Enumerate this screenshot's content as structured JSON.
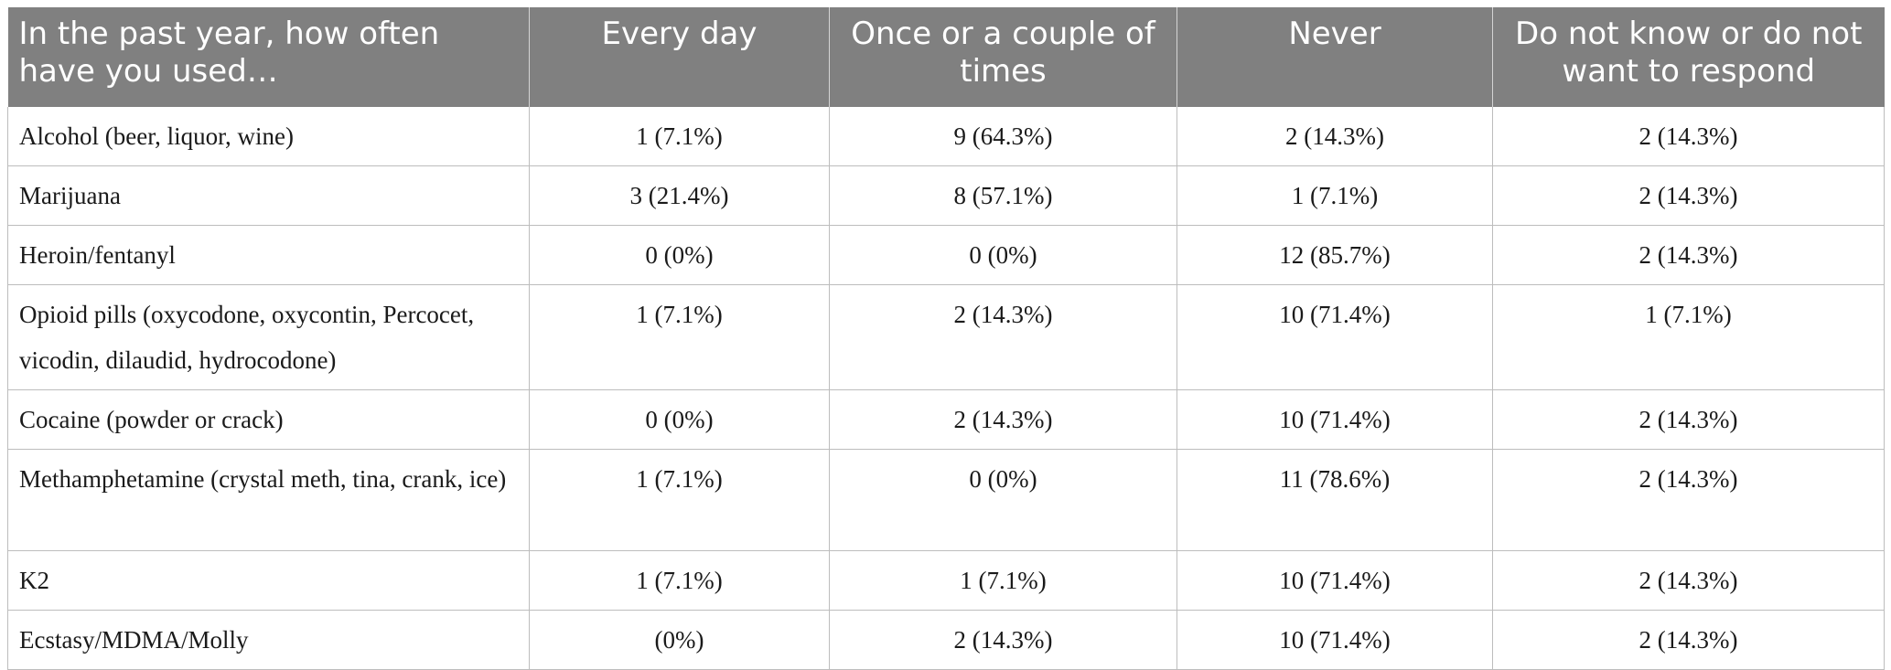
{
  "table": {
    "headers": [
      "In the past year, how often have you used…",
      "Every day",
      "Once or a couple of times",
      "Never",
      "Do not know or do not want to respond"
    ],
    "rows": [
      {
        "substance": "Alcohol (beer, liquor, wine)",
        "every_day": "1 (7.1%)",
        "once_or_couple": "9 (64.3%)",
        "never": "2 (14.3%)",
        "no_response": "2 (14.3%)"
      },
      {
        "substance": "Marijuana",
        "every_day": "3 (21.4%)",
        "once_or_couple": "8 (57.1%)",
        "never": "1 (7.1%)",
        "no_response": "2 (14.3%)"
      },
      {
        "substance": "Heroin/fentanyl",
        "every_day": "0 (0%)",
        "once_or_couple": "0 (0%)",
        "never": "12 (85.7%)",
        "no_response": "2 (14.3%)"
      },
      {
        "substance": "Opioid pills (oxycodone, oxycontin, Percocet, vicodin, dilaudid, hydrocodone)",
        "every_day": "1 (7.1%)",
        "once_or_couple": "2 (14.3%)",
        "never": "10 (71.4%)",
        "no_response": "1 (7.1%)"
      },
      {
        "substance": "Cocaine (powder or crack)",
        "every_day": "0 (0%)",
        "once_or_couple": "2 (14.3%)",
        "never": "10 (71.4%)",
        "no_response": "2 (14.3%)"
      },
      {
        "substance": "Methamphetamine (crystal meth, tina, crank, ice)",
        "every_day": "1 (7.1%)",
        "once_or_couple": "0 (0%)",
        "never": "11 (78.6%)",
        "no_response": "2 (14.3%)"
      },
      {
        "substance": "K2",
        "every_day": "1 (7.1%)",
        "once_or_couple": "1 (7.1%)",
        "never": "10 (71.4%)",
        "no_response": "2 (14.3%)"
      },
      {
        "substance": "Ecstasy/MDMA/Molly",
        "every_day": "(0%)",
        "once_or_couple": "2 (14.3%)",
        "never": "10 (71.4%)",
        "no_response": "2 (14.3%)"
      }
    ]
  }
}
